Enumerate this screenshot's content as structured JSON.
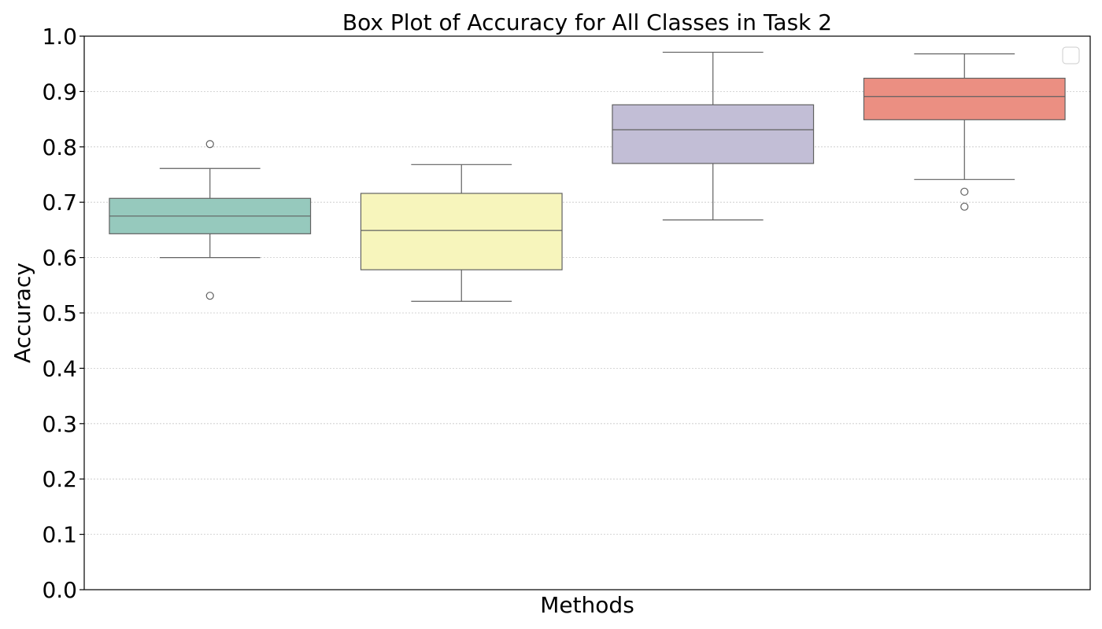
{
  "chart_data": {
    "type": "box",
    "title": "Box Plot of Accuracy for All Classes in Task 2",
    "xlabel": "Methods",
    "ylabel": "Accuracy",
    "ylim": [
      0,
      1
    ],
    "yticks": [
      "0.0",
      "0.1",
      "0.2",
      "0.3",
      "0.4",
      "0.5",
      "0.6",
      "0.7",
      "0.8",
      "0.9",
      "1.0"
    ],
    "grid": "horizontal dotted",
    "legend": "top-right (empty)",
    "series": [
      {
        "color": "#96c9bd",
        "whisker_low": 0.6,
        "q1": 0.643,
        "median": 0.675,
        "q3": 0.707,
        "whisker_high": 0.761,
        "outliers": [
          0.805,
          0.531
        ]
      },
      {
        "color": "#f7f5bc",
        "whisker_low": 0.521,
        "q1": 0.578,
        "median": 0.649,
        "q3": 0.716,
        "whisker_high": 0.768,
        "outliers": []
      },
      {
        "color": "#c2bed6",
        "whisker_low": 0.668,
        "q1": 0.77,
        "median": 0.831,
        "q3": 0.876,
        "whisker_high": 0.971,
        "outliers": []
      },
      {
        "color": "#eb8f82",
        "whisker_low": 0.741,
        "q1": 0.849,
        "median": 0.891,
        "q3": 0.924,
        "whisker_high": 0.968,
        "outliers": [
          0.719,
          0.692
        ]
      }
    ]
  }
}
